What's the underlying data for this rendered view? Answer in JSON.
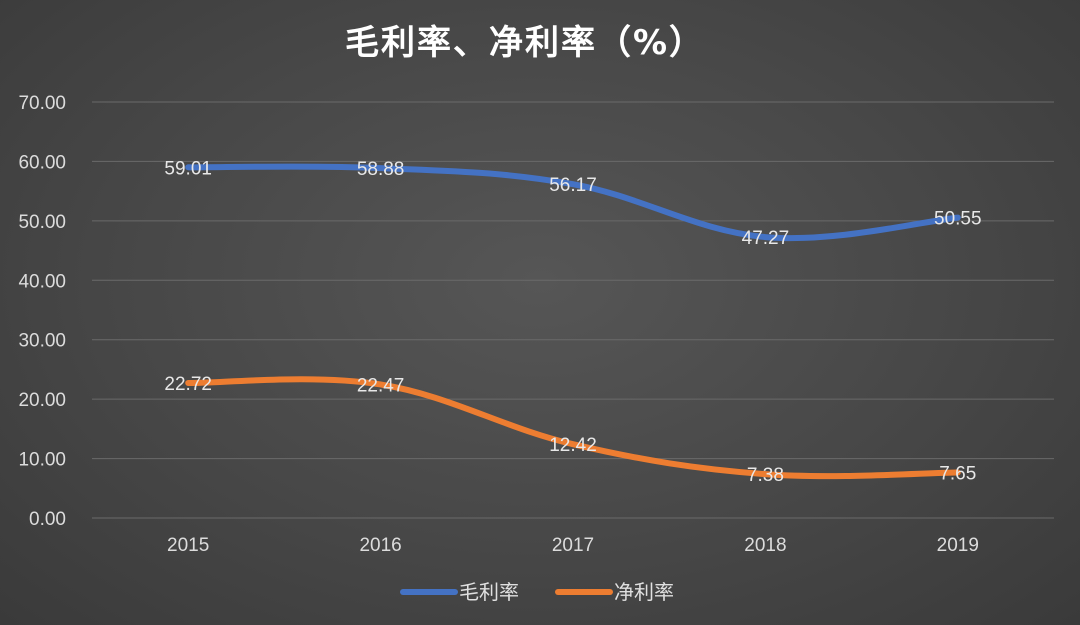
{
  "chart_data": {
    "type": "line",
    "title": "毛利率、净利率（%）",
    "categories": [
      "2015",
      "2016",
      "2017",
      "2018",
      "2019"
    ],
    "ylim": [
      0,
      70
    ],
    "yticks": [
      "0.00",
      "10.00",
      "20.00",
      "30.00",
      "40.00",
      "50.00",
      "60.00",
      "70.00"
    ],
    "grid": true,
    "legend": "bottom",
    "series": [
      {
        "name": "毛利率",
        "values": [
          59.01,
          58.88,
          56.17,
          47.27,
          50.55
        ],
        "labels": [
          "59.01",
          "58.88",
          "56.17",
          "47.27",
          "50.55"
        ],
        "color": "#4472c4"
      },
      {
        "name": "净利率",
        "values": [
          22.72,
          22.47,
          12.42,
          7.38,
          7.65
        ],
        "labels": [
          "22.72",
          "22.47",
          "12.42",
          "7.38",
          "7.65"
        ],
        "color": "#ed7d31"
      }
    ]
  }
}
